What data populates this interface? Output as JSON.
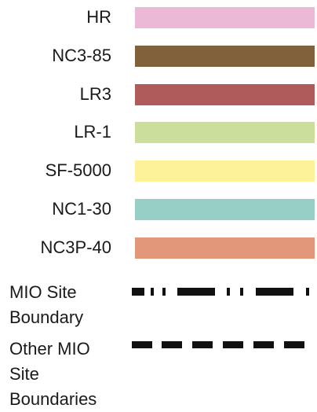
{
  "legend": {
    "zones": [
      {
        "label": "HR",
        "color": "#ebb9d6"
      },
      {
        "label": "NC3-85",
        "color": "#81613b"
      },
      {
        "label": "LR3",
        "color": "#b05b5b"
      },
      {
        "label": "LR-1",
        "color": "#cbde9c"
      },
      {
        "label": "SF-5000",
        "color": "#fdf29a"
      },
      {
        "label": "NC1-30",
        "color": "#97cfc6"
      },
      {
        "label": "NC3P-40",
        "color": "#e3977a"
      }
    ],
    "boundaries": [
      {
        "label": "MIO Site\nBoundary",
        "style": "dash-dot"
      },
      {
        "label": "Other MIO\nSite\nBoundaries",
        "style": "dashed"
      }
    ]
  }
}
